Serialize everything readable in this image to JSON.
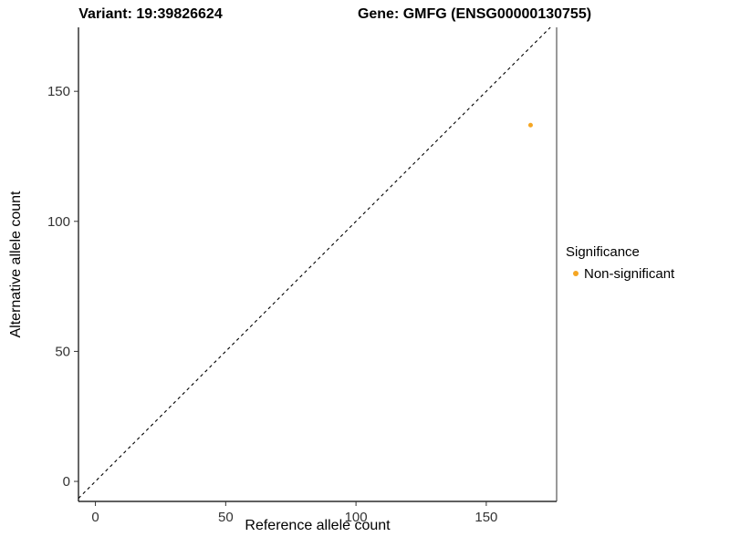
{
  "accent_color": "#F5A623",
  "chart_data": {
    "type": "scatter",
    "title_left": "Variant: 19:39826624",
    "title_right": "Gene: GMFG (ENSG00000130755)",
    "xlabel": "Reference allele count",
    "ylabel": "Alternative allele count",
    "xlim": [
      -6.5,
      177
    ],
    "ylim": [
      -7.7,
      174.6
    ],
    "xticks": [
      0,
      50,
      100,
      150
    ],
    "yticks": [
      0,
      50,
      100,
      150
    ],
    "grid": false,
    "identity_line": {
      "style": "dashed",
      "slope": 1,
      "intercept": 0,
      "color": "#000000"
    },
    "points": [
      {
        "x": 167,
        "y": 137,
        "series": "Non-significant",
        "color": "#F5A623",
        "radius": 2.5
      }
    ],
    "legend": {
      "title": "Significance",
      "position": "right",
      "entries": [
        {
          "label": "Non-significant",
          "color": "#F5A623"
        }
      ]
    }
  }
}
